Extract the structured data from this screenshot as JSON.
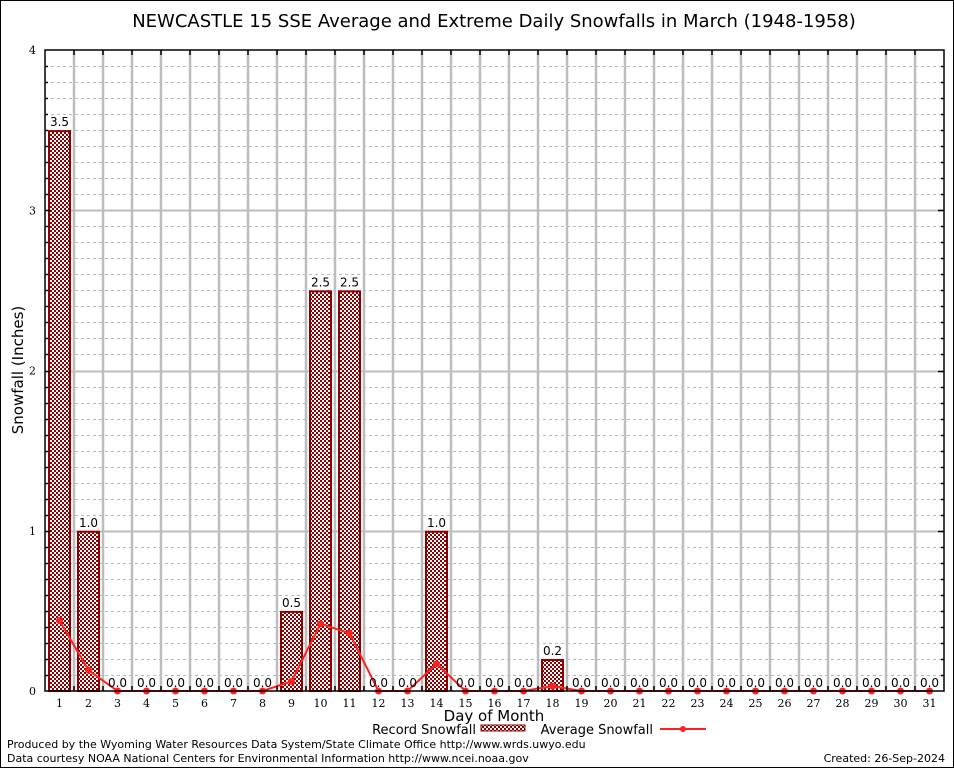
{
  "chart_data": {
    "type": "bar",
    "title": "NEWCASTLE 15 SSE Average and Extreme Daily Snowfalls in March (1948-1958)",
    "xlabel": "Day of Month",
    "ylabel": "Snowfall (Inches)",
    "ylim": [
      0,
      4
    ],
    "yticks": [
      "0",
      "1",
      "2",
      "3",
      "4"
    ],
    "grid": true,
    "categories": [
      "1",
      "2",
      "3",
      "4",
      "5",
      "6",
      "7",
      "8",
      "9",
      "10",
      "11",
      "12",
      "13",
      "14",
      "15",
      "16",
      "17",
      "18",
      "19",
      "20",
      "21",
      "22",
      "23",
      "24",
      "25",
      "26",
      "27",
      "28",
      "29",
      "30",
      "31"
    ],
    "series": [
      {
        "name": "Record Snowfall",
        "type": "bar",
        "color": "#8b0000",
        "values": [
          3.5,
          1.0,
          0.0,
          0.0,
          0.0,
          0.0,
          0.0,
          0.0,
          0.5,
          2.5,
          2.5,
          0.0,
          0.0,
          1.0,
          0.0,
          0.0,
          0.0,
          0.2,
          0.0,
          0.0,
          0.0,
          0.0,
          0.0,
          0.0,
          0.0,
          0.0,
          0.0,
          0.0,
          0.0,
          0.0,
          0.0
        ],
        "labels": [
          "3.5",
          "1.0",
          "0.0",
          "0.0",
          "0.0",
          "0.0",
          "0.0",
          "0.0",
          "0.5",
          "2.5",
          "2.5",
          "0.0",
          "0.0",
          "1.0",
          "0.0",
          "0.0",
          "0.0",
          "0.2",
          "0.0",
          "0.0",
          "0.0",
          "0.0",
          "0.0",
          "0.0",
          "0.0",
          "0.0",
          "0.0",
          "0.0",
          "0.0",
          "0.0",
          "0.0"
        ]
      },
      {
        "name": "Average Snowfall",
        "type": "line",
        "color": "#ff2020",
        "values": [
          0.44,
          0.13,
          0,
          0,
          0,
          0,
          0,
          0,
          0.06,
          0.42,
          0.36,
          0,
          0,
          0.17,
          0,
          0,
          0,
          0.03,
          0,
          0,
          0,
          0,
          0,
          0,
          0,
          0,
          0,
          0,
          0,
          0,
          0
        ]
      }
    ],
    "legend": "bottom-center"
  },
  "footer": {
    "produced_by": "Produced by the Wyoming Water Resources Data System/State Climate Office http://www.wrds.uwyo.edu",
    "courtesy": "Data courtesy NOAA National Centers for Environmental Information http://www.ncei.noaa.gov",
    "created": "Created: 26-Sep-2024"
  }
}
